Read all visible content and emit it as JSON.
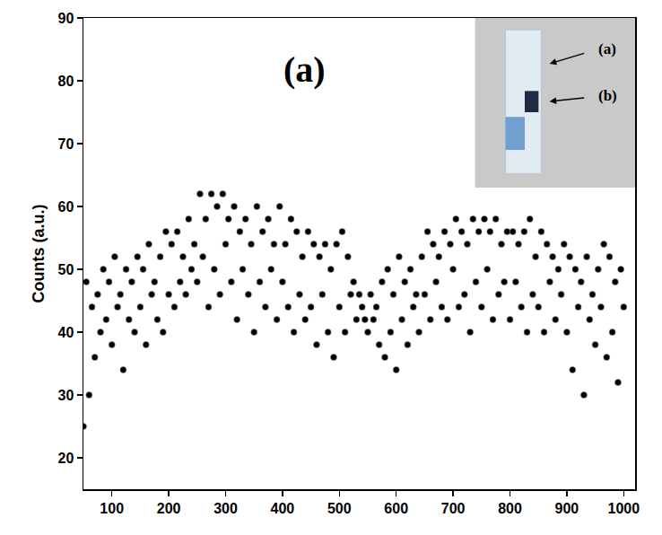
{
  "chart_data": {
    "type": "scatter",
    "title": "(a)",
    "y_label": "Counts (a.u.)",
    "annotations": [
      "(a)",
      "(b)"
    ],
    "color": "#000000",
    "marker": "circle",
    "grid": false,
    "xlim": [
      50,
      1020
    ],
    "ylim": [
      15,
      90
    ],
    "xticks": [
      100,
      200,
      300,
      400,
      500,
      600,
      700,
      800,
      900,
      1000
    ],
    "yticks": [
      20,
      30,
      40,
      50,
      60,
      70,
      80,
      90
    ],
    "x": [
      50,
      55,
      60,
      65,
      70,
      75,
      80,
      85,
      90,
      95,
      100,
      105,
      110,
      115,
      120,
      125,
      130,
      135,
      140,
      145,
      150,
      155,
      160,
      165,
      170,
      175,
      180,
      185,
      190,
      195,
      200,
      205,
      210,
      215,
      220,
      225,
      230,
      235,
      240,
      245,
      250,
      255,
      260,
      265,
      270,
      275,
      280,
      285,
      290,
      295,
      300,
      305,
      310,
      315,
      320,
      325,
      330,
      335,
      340,
      345,
      350,
      355,
      360,
      365,
      370,
      375,
      380,
      385,
      390,
      395,
      400,
      405,
      410,
      415,
      420,
      425,
      430,
      435,
      440,
      445,
      450,
      455,
      460,
      465,
      470,
      475,
      480,
      485,
      490,
      495,
      500,
      505,
      510,
      515,
      520,
      525,
      530,
      535,
      540,
      545,
      550,
      555,
      560,
      565,
      570,
      575,
      580,
      585,
      590,
      595,
      600,
      605,
      610,
      615,
      620,
      625,
      630,
      635,
      640,
      645,
      650,
      655,
      660,
      665,
      670,
      675,
      680,
      685,
      690,
      695,
      700,
      705,
      710,
      715,
      720,
      725,
      730,
      735,
      740,
      745,
      750,
      755,
      760,
      765,
      770,
      775,
      780,
      785,
      790,
      795,
      800,
      805,
      810,
      815,
      820,
      825,
      830,
      835,
      840,
      845,
      850,
      855,
      860,
      865,
      870,
      875,
      880,
      885,
      890,
      895,
      900,
      905,
      910,
      915,
      920,
      925,
      930,
      935,
      940,
      945,
      950,
      955,
      960,
      965,
      970,
      975,
      980,
      985,
      990,
      995,
      1000
    ],
    "values": [
      25,
      48,
      30,
      44,
      36,
      46,
      40,
      50,
      42,
      48,
      38,
      52,
      44,
      46,
      34,
      50,
      42,
      48,
      40,
      52,
      44,
      50,
      38,
      54,
      46,
      48,
      42,
      52,
      40,
      56,
      46,
      54,
      44,
      56,
      48,
      52,
      46,
      58,
      50,
      54,
      48,
      62,
      52,
      58,
      44,
      62,
      50,
      60,
      46,
      62,
      54,
      58,
      48,
      60,
      42,
      56,
      50,
      58,
      46,
      54,
      40,
      60,
      48,
      56,
      44,
      58,
      50,
      54,
      42,
      60,
      48,
      54,
      44,
      58,
      40,
      56,
      46,
      52,
      42,
      56,
      44,
      54,
      38,
      52,
      46,
      54,
      40,
      50,
      36,
      54,
      44,
      56,
      40,
      52,
      46,
      48,
      42,
      46,
      44,
      42,
      40,
      46,
      42,
      44,
      38,
      48,
      36,
      50,
      40,
      46,
      34,
      52,
      42,
      48,
      38,
      50,
      44,
      46,
      40,
      52,
      46,
      56,
      42,
      54,
      48,
      52,
      44,
      56,
      42,
      54,
      50,
      58,
      44,
      56,
      46,
      54,
      40,
      58,
      48,
      56,
      44,
      58,
      50,
      56,
      42,
      58,
      46,
      54,
      48,
      56,
      42,
      56,
      48,
      54,
      44,
      56,
      40,
      58,
      46,
      52,
      44,
      56,
      40,
      54,
      48,
      52,
      42,
      50,
      46,
      54,
      40,
      52,
      34,
      50,
      44,
      48,
      30,
      52,
      42,
      46,
      38,
      50,
      44,
      54,
      36,
      52,
      40,
      48,
      32,
      50,
      44
    ]
  }
}
